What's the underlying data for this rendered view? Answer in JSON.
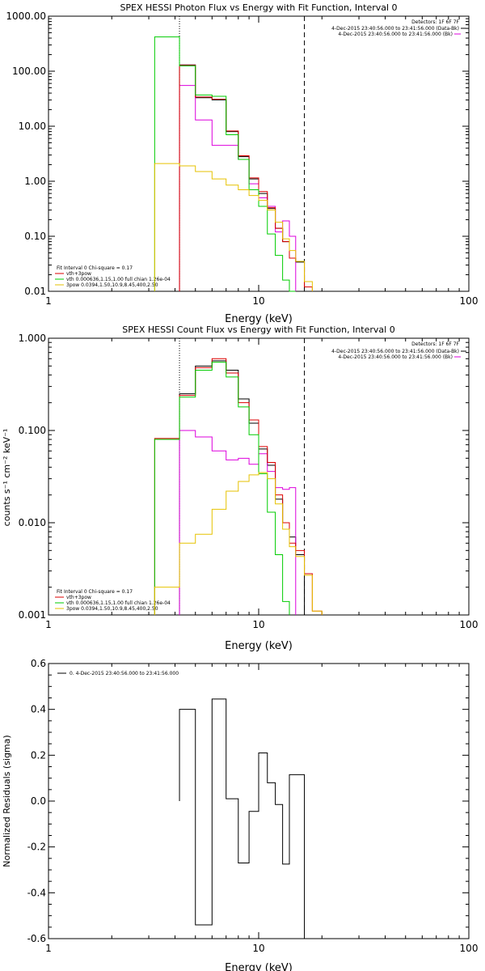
{
  "charts": [
    {
      "title": "SPEX HESSI Photon Flux vs Energy with Fit Function, Interval 0",
      "xlabel": "Energy (keV)",
      "ylabel": "",
      "legend_right": [
        "Detectors: 1F 6F 7F",
        "4-Dec-2015 23:40:56.000 to 23:41:56.000 (Data-Bk)",
        "4-Dec-2015 23:40:56.000 to 23:41:56.000 (Bk)"
      ],
      "legend_left": [
        "Fit Interval 0   Chi-square = 0.17",
        "vth+3pow",
        "vth 0.000636,1.15,1.00   full chian 1.26e-04",
        "3pow 0.0394,1.50,10.9,8.45,400,2.50"
      ]
    },
    {
      "title": "SPEX HESSI Count Flux vs Energy with Fit Function, Interval 0",
      "xlabel": "Energy (keV)",
      "ylabel": "counts s⁻¹ cm⁻² keV⁻¹",
      "legend_right": [
        "Detectors: 1F 6F 7F",
        "4-Dec-2015 23:40:56.000 to 23:41:56.000 (Data-Bk)",
        "4-Dec-2015 23:40:56.000 to 23:41:56.000 (Bk)"
      ],
      "legend_left": [
        "Fit Interval 0   Chi-square = 0.17",
        "vth+3pow",
        "vth 0.000636,1.15,1.00   full chian 1.26e-04",
        "3pow 0.0394,1.50,10.9,8.45,400,2.50"
      ]
    },
    {
      "title": "",
      "xlabel": "Energy (keV)",
      "ylabel": "Normalized Residuals (sigma)",
      "legend_right": [],
      "legend_left": [
        "0. 4-Dec-2015 23:40:56.000 to 23:41:56.000"
      ]
    }
  ],
  "chart_data": [
    {
      "type": "line",
      "title": "SPEX HESSI Photon Flux vs Energy with Fit Function, Interval 0",
      "xlabel": "Energy (keV)",
      "xscale": "log",
      "yscale": "log",
      "xlim": [
        1,
        100
      ],
      "ylim": [
        0.01,
        1000
      ],
      "xticks": [
        1,
        10,
        100
      ],
      "xticklabels": [
        "1",
        "10",
        "100"
      ],
      "yticks": [
        0.01,
        0.1,
        1,
        10,
        100,
        1000
      ],
      "yticklabels": [
        "0.01",
        "0.10",
        "1.00",
        "10.00",
        "100.00",
        "1000.00"
      ],
      "vlines": [
        {
          "x": 4.2,
          "style": "dotted"
        },
        {
          "x": 16.5,
          "style": "dashed"
        }
      ],
      "bin_edges": [
        3.2,
        4.2,
        5.0,
        6.0,
        7.0,
        8.0,
        9.0,
        10.0,
        11.0,
        12.0,
        13.0,
        14.0,
        15.0,
        16.5,
        18.0
      ],
      "series": [
        {
          "name": "Data-Bk",
          "color": "#000000",
          "values": [
            null,
            130,
            33,
            30,
            8,
            2.8,
            1.1,
            0.6,
            0.32,
            0.14,
            0.08,
            0.04,
            0.034,
            null
          ]
        },
        {
          "name": "Bk",
          "color": "#dd00dd",
          "values": [
            null,
            55,
            13,
            4.5,
            4.5,
            2.5,
            0.9,
            0.5,
            0.35,
            0.12,
            0.19,
            0.1,
            null,
            null
          ]
        },
        {
          "name": "vth+3pow",
          "color": "#dd0000",
          "values": [
            null,
            128,
            34,
            31,
            8.2,
            2.9,
            1.15,
            0.65,
            0.33,
            0.14,
            0.08,
            0.04,
            0.035,
            0.012
          ]
        },
        {
          "name": "vth",
          "color": "#00cc00",
          "values": [
            420,
            125,
            37,
            35,
            7,
            2.5,
            0.7,
            0.35,
            0.11,
            0.045,
            0.016,
            0.01,
            null,
            null
          ]
        },
        {
          "name": "3pow",
          "color": "#e6c200",
          "values": [
            2.1,
            1.9,
            1.5,
            1.1,
            0.85,
            0.7,
            0.55,
            0.45,
            0.3,
            0.18,
            0.09,
            0.055,
            0.035,
            0.015
          ]
        }
      ]
    },
    {
      "type": "line",
      "title": "SPEX HESSI Count Flux vs Energy with Fit Function, Interval 0",
      "xlabel": "Energy (keV)",
      "xscale": "log",
      "yscale": "log",
      "xlim": [
        1,
        100
      ],
      "ylim": [
        0.001,
        1
      ],
      "xticks": [
        1,
        10,
        100
      ],
      "xticklabels": [
        "1",
        "10",
        "100"
      ],
      "yticks": [
        0.001,
        0.01,
        0.1,
        1
      ],
      "yticklabels": [
        "0.001",
        "0.010",
        "0.100",
        "1.000"
      ],
      "vlines": [
        {
          "x": 4.2,
          "style": "dotted"
        },
        {
          "x": 16.5,
          "style": "dashed"
        }
      ],
      "bin_edges": [
        3.2,
        4.2,
        5.0,
        6.0,
        7.0,
        8.0,
        9.0,
        10.0,
        11.0,
        12.0,
        13.0,
        14.0,
        15.0,
        16.5,
        18.0,
        20.0
      ],
      "series": [
        {
          "name": "Data-Bk",
          "color": "#000000",
          "values": [
            null,
            0.25,
            0.5,
            0.57,
            0.45,
            0.22,
            0.12,
            0.063,
            0.042,
            0.018,
            0.01,
            0.007,
            0.0045,
            null,
            null
          ]
        },
        {
          "name": "Bk",
          "color": "#dd00dd",
          "values": [
            null,
            0.1,
            0.085,
            0.06,
            0.048,
            0.05,
            0.043,
            0.056,
            0.036,
            0.024,
            0.023,
            0.024,
            null,
            null,
            null
          ]
        },
        {
          "name": "vth+3pow",
          "color": "#dd0000",
          "values": [
            0.082,
            0.24,
            0.48,
            0.6,
            0.42,
            0.2,
            0.13,
            0.067,
            0.045,
            0.02,
            0.01,
            0.006,
            0.005,
            0.0028,
            0.0011
          ]
        },
        {
          "name": "vth",
          "color": "#00cc00",
          "values": [
            0.08,
            0.23,
            0.45,
            0.55,
            0.38,
            0.18,
            0.09,
            0.034,
            0.013,
            0.0045,
            0.0014,
            null,
            null,
            null,
            null
          ]
        },
        {
          "name": "3pow",
          "color": "#e6c200",
          "values": [
            0.002,
            0.006,
            0.0075,
            0.014,
            0.022,
            0.028,
            0.033,
            0.035,
            0.03,
            0.016,
            0.0085,
            0.0055,
            0.0043,
            0.0027,
            0.0011
          ]
        }
      ]
    },
    {
      "type": "line",
      "title": "",
      "xlabel": "Energy (keV)",
      "ylabel": "Normalized Residuals (sigma)",
      "xscale": "log",
      "yscale": "linear",
      "xlim": [
        1,
        100
      ],
      "ylim": [
        -0.6,
        0.6
      ],
      "xticks": [
        1,
        10,
        100
      ],
      "xticklabels": [
        "1",
        "10",
        "100"
      ],
      "yticks": [
        -0.6,
        -0.4,
        -0.2,
        0.0,
        0.2,
        0.4,
        0.6
      ],
      "yticklabels": [
        "-0.6",
        "-0.4",
        "-0.2",
        "0.0",
        "0.2",
        "0.4",
        "0.6"
      ],
      "bin_edges": [
        4.2,
        5.0,
        6.0,
        7.0,
        8.0,
        9.0,
        10.0,
        11.0,
        12.0,
        13.0,
        14.0,
        15.0,
        16.5
      ],
      "series": [
        {
          "name": "0. 4-Dec-2015 23:40:56.000 to 23:41:56.000",
          "color": "#000000",
          "values": [
            0.4,
            -0.54,
            0.445,
            0.01,
            -0.27,
            -0.045,
            0.21,
            0.08,
            -0.015,
            -0.275,
            0.115,
            0.115
          ]
        }
      ]
    }
  ]
}
